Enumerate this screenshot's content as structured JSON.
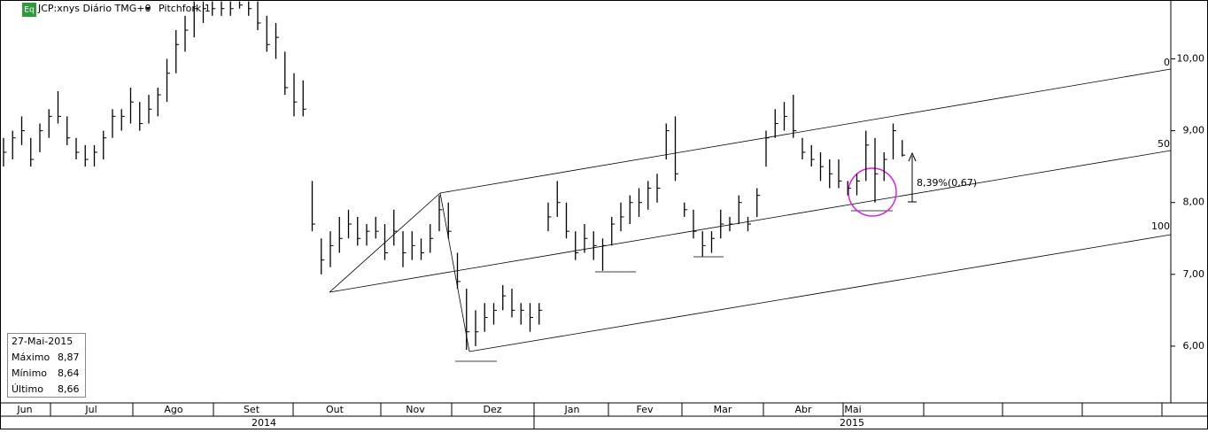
{
  "header": {
    "badge": "Eq",
    "title": "JCP:xnys Diário TMG+0",
    "study": "Pitchfork 1"
  },
  "chart_data": {
    "type": "ohlc",
    "color": "#000000",
    "high": [
      8.9,
      9.0,
      9.2,
      8.9,
      9.1,
      9.3,
      9.55,
      9.2,
      8.9,
      8.8,
      8.8,
      9.0,
      9.3,
      9.3,
      9.6,
      9.4,
      9.5,
      9.6,
      10.0,
      10.4,
      10.6,
      10.8,
      10.8,
      10.8,
      10.8,
      10.8,
      10.8,
      10.8,
      10.8,
      10.6,
      10.5,
      10.1,
      9.8,
      9.7,
      8.3,
      7.5,
      7.6,
      7.8,
      7.9,
      7.8,
      7.7,
      7.8,
      7.7,
      7.9,
      7.6,
      7.6,
      7.5,
      7.7,
      8.1,
      8.0,
      7.3,
      6.8,
      6.5,
      6.6,
      6.6,
      6.85,
      6.8,
      6.6,
      6.6,
      6.6,
      8.0,
      8.3,
      8.0,
      7.6,
      7.7,
      7.6,
      7.5,
      7.8,
      8.0,
      8.1,
      8.2,
      8.3,
      8.4,
      9.1,
      9.2,
      8.0,
      7.9,
      7.6,
      7.6,
      7.9,
      7.8,
      8.1,
      7.8,
      8.2,
      9.0,
      9.3,
      9.4,
      9.5,
      8.9,
      8.8,
      8.7,
      8.6,
      8.6,
      8.3,
      8.4,
      9.0,
      8.9,
      8.7,
      9.1,
      8.87
    ],
    "low": [
      8.5,
      8.6,
      8.8,
      8.5,
      8.7,
      8.9,
      9.1,
      8.8,
      8.6,
      8.5,
      8.5,
      8.6,
      8.9,
      9.0,
      9.1,
      9.0,
      9.1,
      9.2,
      9.4,
      9.8,
      10.1,
      10.3,
      10.5,
      10.6,
      10.6,
      10.6,
      10.7,
      10.6,
      10.4,
      10.1,
      10.0,
      9.5,
      9.2,
      9.2,
      7.6,
      7.0,
      7.1,
      7.3,
      7.5,
      7.4,
      7.4,
      7.5,
      7.2,
      7.4,
      7.1,
      7.2,
      7.2,
      7.3,
      7.6,
      7.5,
      6.8,
      5.95,
      6.0,
      6.2,
      6.3,
      6.5,
      6.4,
      6.3,
      6.2,
      6.3,
      7.6,
      7.8,
      7.5,
      7.2,
      7.3,
      7.2,
      7.05,
      7.4,
      7.6,
      7.7,
      7.8,
      7.9,
      8.0,
      8.6,
      8.3,
      7.8,
      7.5,
      7.25,
      7.3,
      7.5,
      7.6,
      7.7,
      7.6,
      7.8,
      8.5,
      8.9,
      9.0,
      8.9,
      8.6,
      8.5,
      8.3,
      8.2,
      8.2,
      8.1,
      8.1,
      8.3,
      8.0,
      8.3,
      8.6,
      8.64
    ],
    "close": [
      8.7,
      8.9,
      9.0,
      8.6,
      9.0,
      9.2,
      9.2,
      8.9,
      8.7,
      8.6,
      8.7,
      8.9,
      9.2,
      9.2,
      9.4,
      9.1,
      9.3,
      9.5,
      9.8,
      10.2,
      10.4,
      10.7,
      10.7,
      10.7,
      10.7,
      10.7,
      10.75,
      10.7,
      10.5,
      10.2,
      10.3,
      9.6,
      9.4,
      9.3,
      7.7,
      7.2,
      7.4,
      7.5,
      7.7,
      7.5,
      7.6,
      7.6,
      7.3,
      7.6,
      7.3,
      7.4,
      7.3,
      7.5,
      7.9,
      7.6,
      6.9,
      6.2,
      6.2,
      6.4,
      6.5,
      6.7,
      6.5,
      6.5,
      6.4,
      6.5,
      7.8,
      8.0,
      7.6,
      7.3,
      7.5,
      7.4,
      7.4,
      7.7,
      7.8,
      8.0,
      8.0,
      8.2,
      8.2,
      9.0,
      8.4,
      7.9,
      7.6,
      7.4,
      7.5,
      7.7,
      7.7,
      8.0,
      7.7,
      8.1,
      8.9,
      9.1,
      9.2,
      9.0,
      8.7,
      8.6,
      8.5,
      8.4,
      8.3,
      8.2,
      8.3,
      8.8,
      8.4,
      8.6,
      9.0,
      8.66
    ],
    "ylim": [
      5.21,
      10.82
    ],
    "yticks": [
      {
        "value": 6,
        "label": "6,00"
      },
      {
        "value": 7,
        "label": "7,00"
      },
      {
        "value": 8,
        "label": "8,00"
      },
      {
        "value": 9,
        "label": "9,00"
      },
      {
        "value": 10,
        "label": "10,00"
      }
    ],
    "months": [
      "Jun",
      "Jul",
      "Ago",
      "Set",
      "Out",
      "Nov",
      "Dez",
      "Jan",
      "Fev",
      "Mar",
      "Abr",
      "Mai"
    ],
    "years": [
      "2014",
      "2015"
    ],
    "pitchfork_levels": [
      "0",
      "50",
      "100"
    ],
    "annotation": "8,39%(0,67)"
  },
  "info_box": {
    "date": "27-Mai-2015",
    "rows": [
      [
        "Máximo",
        "8,87"
      ],
      [
        "Mínimo",
        "8,64"
      ],
      [
        "Último",
        "8,66"
      ]
    ]
  }
}
